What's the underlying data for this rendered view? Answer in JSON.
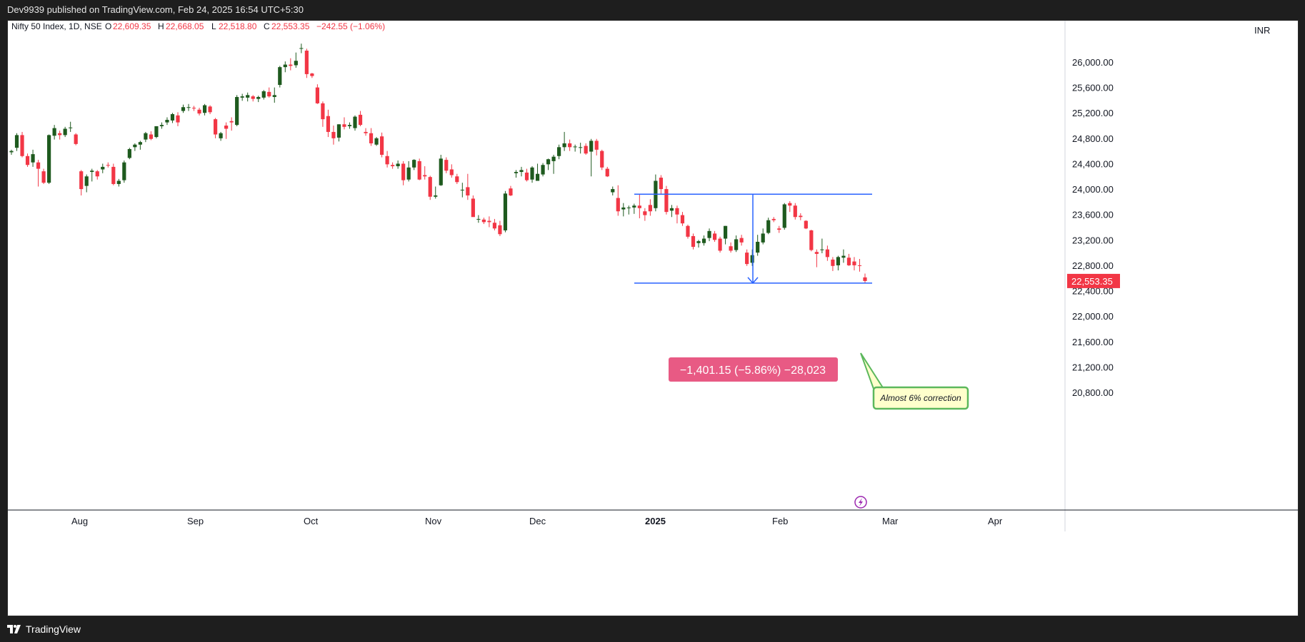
{
  "header": {
    "published_text": "Dev9939 published on TradingView.com, Feb 24, 2025 16:54 UTC+5:30"
  },
  "footer": {
    "brand": "TradingView"
  },
  "chart_data": {
    "type": "candlestick",
    "symbol_label": "Nifty 50 Index, 1D, NSE",
    "ohlc_legend": {
      "open_label": "O",
      "open": "22,609.35",
      "high_label": "H",
      "high": "22,668.05",
      "low_label": "L",
      "low": "22,518.80",
      "close_label": "C",
      "close": "22,553.35",
      "change": "−242.55 (−1.06%)"
    },
    "currency": "INR",
    "y_ticks": [
      26000,
      25600,
      25200,
      24800,
      24400,
      24000,
      23600,
      23200,
      22800,
      22400,
      22000,
      21600,
      21200,
      20800
    ],
    "y_tick_labels": [
      "26,000.00",
      "25,600.00",
      "25,200.00",
      "24,800.00",
      "24,400.00",
      "24,000.00",
      "23,600.00",
      "23,200.00",
      "22,800.00",
      "22,400.00",
      "22,000.00",
      "21,600.00",
      "21,200.00",
      "20,800.00"
    ],
    "x_ticks": [
      {
        "label": "Aug",
        "bold": false
      },
      {
        "label": "Sep",
        "bold": false
      },
      {
        "label": "Oct",
        "bold": false
      },
      {
        "label": "Nov",
        "bold": false
      },
      {
        "label": "Dec",
        "bold": false
      },
      {
        "label": "2025",
        "bold": true
      },
      {
        "label": "Feb",
        "bold": false
      },
      {
        "label": "Mar",
        "bold": false
      },
      {
        "label": "Apr",
        "bold": false
      }
    ],
    "last_price_label": "22,553.35",
    "colors": {
      "up": "#1e5a1e",
      "down": "#f23645",
      "measure_line": "#2962ff",
      "measure_box": "#e85a84",
      "note_border": "#5cb85c",
      "note_bg": "#ffffcc"
    },
    "candles": [
      [
        24580,
        24620,
        24540,
        24600
      ],
      [
        24650,
        24880,
        24600,
        24850
      ],
      [
        24850,
        24900,
        24500,
        24520
      ],
      [
        24520,
        24560,
        24350,
        24380
      ],
      [
        24420,
        24620,
        24350,
        24550
      ],
      [
        24420,
        24460,
        24040,
        24320
      ],
      [
        24280,
        24320,
        24080,
        24100
      ],
      [
        24100,
        24860,
        24080,
        24850
      ],
      [
        24840,
        25010,
        24780,
        24960
      ],
      [
        24880,
        24920,
        24780,
        24850
      ],
      [
        24850,
        24980,
        24820,
        24950
      ],
      [
        24960,
        25060,
        24900,
        24970
      ],
      [
        24860,
        24880,
        24690,
        24710
      ],
      [
        24280,
        24300,
        23900,
        24000
      ],
      [
        24050,
        24230,
        23950,
        24200
      ],
      [
        24270,
        24320,
        24120,
        24290
      ],
      [
        24280,
        24300,
        24150,
        24200
      ],
      [
        24310,
        24400,
        24250,
        24350
      ],
      [
        24380,
        24420,
        24340,
        24370
      ],
      [
        24350,
        24400,
        24060,
        24080
      ],
      [
        24080,
        24160,
        24040,
        24130
      ],
      [
        24140,
        24450,
        24100,
        24420
      ],
      [
        24490,
        24650,
        24470,
        24630
      ],
      [
        24660,
        24720,
        24600,
        24700
      ],
      [
        24700,
        24760,
        24620,
        24740
      ],
      [
        24780,
        24900,
        24740,
        24880
      ],
      [
        24860,
        24910,
        24770,
        24790
      ],
      [
        24820,
        24990,
        24800,
        24990
      ],
      [
        24990,
        25050,
        24950,
        25010
      ],
      [
        25050,
        25130,
        25010,
        25090
      ],
      [
        25080,
        25200,
        25040,
        25180
      ],
      [
        25160,
        25210,
        24990,
        25050
      ],
      [
        25230,
        25330,
        25200,
        25290
      ],
      [
        25290,
        25340,
        25230,
        25290
      ],
      [
        25280,
        25310,
        25230,
        25270
      ],
      [
        25250,
        25280,
        25160,
        25190
      ],
      [
        25200,
        25340,
        25160,
        25320
      ],
      [
        25300,
        25320,
        25180,
        25210
      ],
      [
        25100,
        25120,
        24800,
        24860
      ],
      [
        24800,
        24900,
        24760,
        24880
      ],
      [
        25000,
        25050,
        24790,
        24950
      ],
      [
        25070,
        25130,
        24920,
        25050
      ],
      [
        25010,
        25480,
        24990,
        25450
      ],
      [
        25440,
        25500,
        25390,
        25460
      ],
      [
        25440,
        25520,
        25380,
        25480
      ],
      [
        25460,
        25480,
        25380,
        25420
      ],
      [
        25420,
        25470,
        25370,
        25450
      ],
      [
        25440,
        25560,
        25410,
        25540
      ],
      [
        25530,
        25600,
        25440,
        25460
      ],
      [
        25450,
        25600,
        25360,
        25480
      ],
      [
        25640,
        25940,
        25600,
        25920
      ],
      [
        25920,
        26010,
        25840,
        25960
      ],
      [
        25960,
        26060,
        25870,
        25940
      ],
      [
        25950,
        26150,
        25910,
        26020
      ],
      [
        26210,
        26290,
        26140,
        26220
      ],
      [
        26180,
        26210,
        25750,
        25810
      ],
      [
        25820,
        25830,
        25750,
        25780
      ],
      [
        25600,
        25650,
        25340,
        25350
      ],
      [
        25350,
        25380,
        24980,
        25100
      ],
      [
        25150,
        25250,
        24820,
        24900
      ],
      [
        24900,
        25000,
        24700,
        24800
      ],
      [
        24810,
        25020,
        24750,
        25020
      ],
      [
        25020,
        25130,
        24940,
        24980
      ],
      [
        24990,
        25050,
        24950,
        25010
      ],
      [
        24960,
        25160,
        24920,
        25140
      ],
      [
        25170,
        25230,
        24990,
        25010
      ],
      [
        24900,
        24960,
        24840,
        24880
      ],
      [
        24880,
        24960,
        24680,
        24720
      ],
      [
        24700,
        24820,
        24680,
        24800
      ],
      [
        24830,
        24890,
        24500,
        24540
      ],
      [
        24520,
        24600,
        24340,
        24390
      ],
      [
        24380,
        24420,
        24320,
        24360
      ],
      [
        24360,
        24450,
        24320,
        24400
      ],
      [
        24400,
        24440,
        24060,
        24140
      ],
      [
        24150,
        24440,
        24120,
        24340
      ],
      [
        24340,
        24470,
        24300,
        24460
      ],
      [
        24440,
        24480,
        24140,
        24150
      ],
      [
        24220,
        24360,
        24150,
        24200
      ],
      [
        24190,
        24210,
        23830,
        23880
      ],
      [
        23880,
        24040,
        23850,
        23900
      ],
      [
        24060,
        24540,
        24050,
        24480
      ],
      [
        24460,
        24500,
        24250,
        24290
      ],
      [
        24310,
        24390,
        24180,
        24220
      ],
      [
        24200,
        24240,
        24080,
        24110
      ],
      [
        23980,
        24100,
        23870,
        23990
      ],
      [
        24030,
        24240,
        23830,
        23900
      ],
      [
        23850,
        23900,
        23590,
        23560
      ],
      [
        23530,
        23590,
        23470,
        23530
      ],
      [
        23520,
        23550,
        23450,
        23480
      ],
      [
        23500,
        23570,
        23400,
        23480
      ],
      [
        23470,
        23530,
        23350,
        23380
      ],
      [
        23430,
        23500,
        23260,
        23290
      ],
      [
        23350,
        23970,
        23320,
        23930
      ],
      [
        24010,
        24050,
        23890,
        23900
      ],
      [
        24250,
        24300,
        24180,
        24270
      ],
      [
        24270,
        24350,
        24200,
        24300
      ],
      [
        24260,
        24320,
        24120,
        24140
      ],
      [
        24150,
        24360,
        24100,
        24340
      ],
      [
        24130,
        24400,
        24140,
        24240
      ],
      [
        24230,
        24410,
        24200,
        24380
      ],
      [
        24390,
        24480,
        24300,
        24470
      ],
      [
        24440,
        24540,
        24240,
        24510
      ],
      [
        24520,
        24700,
        24470,
        24660
      ],
      [
        24660,
        24900,
        24600,
        24720
      ],
      [
        24720,
        24780,
        24600,
        24660
      ],
      [
        24660,
        24700,
        24590,
        24670
      ],
      [
        24650,
        24730,
        24560,
        24660
      ],
      [
        24680,
        24720,
        24540,
        24560
      ],
      [
        24590,
        24790,
        24200,
        24760
      ],
      [
        24760,
        24790,
        24530,
        24620
      ],
      [
        24600,
        24620,
        24300,
        24340
      ],
      [
        24320,
        24350,
        24190,
        24200
      ],
      [
        23950,
        24040,
        23900,
        24000
      ],
      [
        23860,
        24060,
        23580,
        23650
      ],
      [
        23680,
        23780,
        23570,
        23710
      ],
      [
        23700,
        23740,
        23600,
        23710
      ],
      [
        23710,
        23770,
        23610,
        23740
      ],
      [
        23740,
        23920,
        23540,
        23700
      ],
      [
        23650,
        23700,
        23500,
        23590
      ],
      [
        23750,
        23840,
        23580,
        23650
      ],
      [
        23700,
        24230,
        23650,
        24130
      ],
      [
        24180,
        24220,
        23920,
        24000
      ],
      [
        24000,
        24050,
        23600,
        23640
      ],
      [
        23660,
        23750,
        23560,
        23700
      ],
      [
        23700,
        23740,
        23460,
        23600
      ],
      [
        23590,
        23640,
        23420,
        23460
      ],
      [
        23420,
        23440,
        23220,
        23250
      ],
      [
        23260,
        23300,
        23050,
        23090
      ],
      [
        23150,
        23200,
        23080,
        23180
      ],
      [
        23150,
        23270,
        23110,
        23220
      ],
      [
        23230,
        23380,
        23180,
        23340
      ],
      [
        23300,
        23340,
        23170,
        23200
      ],
      [
        23220,
        23250,
        23000,
        23030
      ],
      [
        23220,
        23420,
        23130,
        23420
      ],
      [
        23100,
        23160,
        23000,
        23030
      ],
      [
        23040,
        23270,
        23010,
        23210
      ],
      [
        23230,
        23280,
        23110,
        23160
      ],
      [
        23000,
        23050,
        22790,
        22820
      ],
      [
        22840,
        23050,
        22790,
        22960
      ],
      [
        23000,
        23280,
        22950,
        23170
      ],
      [
        23160,
        23380,
        23130,
        23300
      ],
      [
        23310,
        23550,
        23290,
        23510
      ],
      [
        23530,
        23560,
        23480,
        23510
      ],
      [
        23380,
        23420,
        23310,
        23360
      ],
      [
        23390,
        23780,
        23360,
        23760
      ],
      [
        23780,
        23810,
        23640,
        23740
      ],
      [
        23740,
        23780,
        23520,
        23560
      ],
      [
        23580,
        23620,
        23510,
        23560
      ],
      [
        23500,
        23510,
        23370,
        23380
      ],
      [
        23350,
        23360,
        23020,
        23040
      ],
      [
        23010,
        23050,
        22770,
        22980
      ],
      [
        23050,
        23220,
        22990,
        23050
      ],
      [
        23050,
        23110,
        22870,
        22930
      ],
      [
        22890,
        22930,
        22710,
        22790
      ],
      [
        22800,
        22950,
        22720,
        22930
      ],
      [
        22920,
        23050,
        22840,
        22950
      ],
      [
        22920,
        22980,
        22790,
        22800
      ],
      [
        22860,
        22930,
        22720,
        22800
      ],
      [
        22800,
        22900,
        22700,
        22790
      ],
      [
        22610,
        22670,
        22520,
        22553
      ]
    ],
    "measure": {
      "top_price": 23920,
      "bottom_price": 22520,
      "label": "−1,401.15 (−5.86%) −28,023"
    },
    "note": {
      "text": "Almost 6% correction"
    }
  }
}
